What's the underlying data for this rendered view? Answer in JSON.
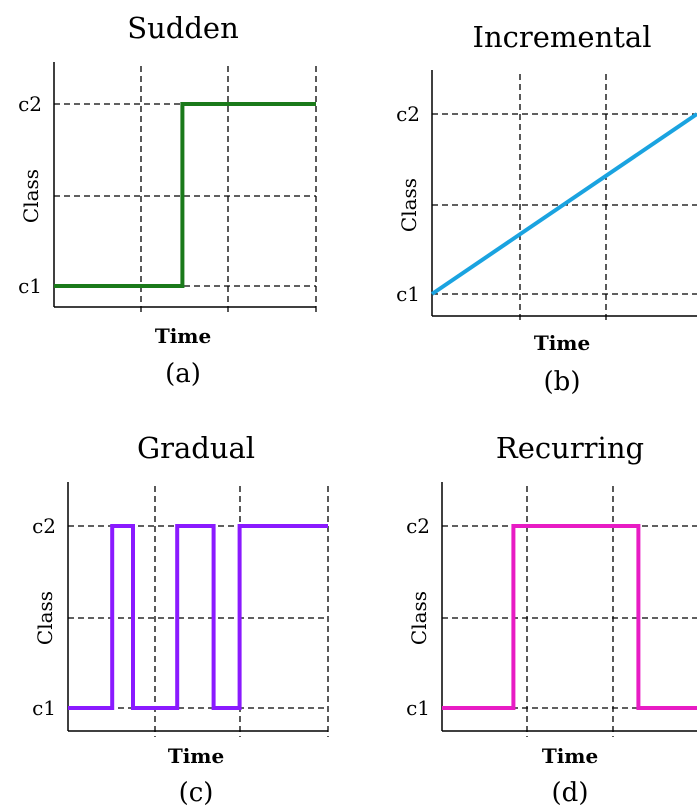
{
  "figure": {
    "tick_labels": {
      "c1": "c1",
      "c2": "c2"
    }
  },
  "chart_data": [
    {
      "type": "line",
      "title": "Sudden",
      "subtitle": "",
      "xlabel": "Time",
      "ylabel": "Class",
      "caption": "(a)",
      "ylim": [
        "c1",
        "c2"
      ],
      "grid": true,
      "color": "#1a7a1a",
      "series": [
        {
          "x": [
            0,
            0.49,
            0.49,
            1
          ],
          "y": [
            "c1",
            "c1",
            "c2",
            "c2"
          ]
        }
      ]
    },
    {
      "type": "line",
      "title": "Incremental",
      "subtitle": "",
      "xlabel": "Time",
      "ylabel": "Class",
      "caption": "(b)",
      "ylim": [
        "c1",
        "c2"
      ],
      "grid": true,
      "color": "#1aa3e0",
      "series": [
        {
          "x": [
            0,
            1
          ],
          "y": [
            "c1",
            "c2"
          ]
        }
      ]
    },
    {
      "type": "line",
      "title": "Gradual",
      "subtitle": "",
      "xlabel": "Time",
      "ylabel": "Class",
      "caption": "(c)",
      "ylim": [
        "c1",
        "c2"
      ],
      "grid": true,
      "color": "#8a1aff",
      "series": [
        {
          "x": [
            0,
            0.17,
            0.17,
            0.25,
            0.25,
            0.42,
            0.42,
            0.56,
            0.56,
            0.66,
            0.66,
            1
          ],
          "y": [
            "c1",
            "c1",
            "c2",
            "c2",
            "c1",
            "c1",
            "c2",
            "c2",
            "c1",
            "c1",
            "c2",
            "c2"
          ]
        }
      ]
    },
    {
      "type": "line",
      "title": "Recurring",
      "subtitle": "",
      "xlabel": "Time",
      "ylabel": "Class",
      "caption": "(d)",
      "ylim": [
        "c1",
        "c2"
      ],
      "grid": true,
      "color": "#e81cc4",
      "series": [
        {
          "x": [
            0,
            0.28,
            0.28,
            0.77,
            0.77,
            1
          ],
          "y": [
            "c1",
            "c1",
            "c2",
            "c2",
            "c1",
            "c1"
          ]
        }
      ]
    }
  ]
}
